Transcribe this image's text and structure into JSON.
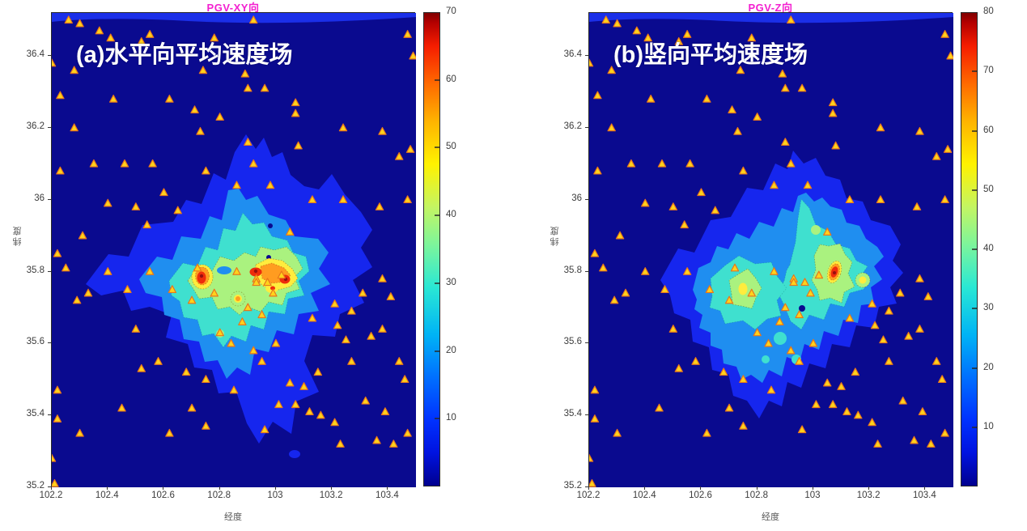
{
  "figure": {
    "background": "#ffffff",
    "xlabel": "经度",
    "ylabel": "纬度",
    "x_ticks": [
      "102.2",
      "102.4",
      "102.6",
      "102.8",
      "103",
      "103.2",
      "103.4"
    ],
    "y_ticks": [
      "36.4",
      "36.2",
      "36",
      "35.8",
      "35.6",
      "35.4",
      "35.2"
    ],
    "xlim": [
      102.2,
      103.5
    ],
    "ylim": [
      35.2,
      36.52
    ],
    "title_color": "#f320d0",
    "annotation_color": "#ffffff",
    "contour_level_colors": [
      "#0a0a8f",
      "#1626ee",
      "#1f8ef0",
      "#3fe0cf",
      "#aaf27f",
      "#ffec3d",
      "#ff9c20",
      "#ee2c0c",
      "#990f0f"
    ]
  },
  "panels": [
    {
      "id": "pgv-xy",
      "title": "PGV-XY向",
      "annotation": "(a)水平向平均速度场",
      "colorbar": {
        "min": 0,
        "max": 70,
        "ticks": [
          70,
          60,
          50,
          40,
          30,
          20,
          10
        ]
      }
    },
    {
      "id": "pgv-z",
      "title": "PGV-Z向",
      "annotation": "(b)竖向平均速度场",
      "colorbar": {
        "min": 0,
        "max": 80,
        "ticks": [
          80,
          70,
          60,
          50,
          40,
          30,
          20,
          10
        ]
      }
    }
  ],
  "stations": {
    "marker": "triangle",
    "fill": "#ffd21c",
    "stroke": "#e8761b",
    "points": [
      [
        102.26,
        36.5
      ],
      [
        102.3,
        36.49
      ],
      [
        102.37,
        36.47
      ],
      [
        102.41,
        36.45
      ],
      [
        102.52,
        36.44
      ],
      [
        102.55,
        36.46
      ],
      [
        102.78,
        36.45
      ],
      [
        102.92,
        36.5
      ],
      [
        103.47,
        36.46
      ],
      [
        103.49,
        36.4
      ],
      [
        102.2,
        36.38
      ],
      [
        102.28,
        36.36
      ],
      [
        102.74,
        36.36
      ],
      [
        102.89,
        36.35
      ],
      [
        102.9,
        36.31
      ],
      [
        102.96,
        36.31
      ],
      [
        102.23,
        36.29
      ],
      [
        102.42,
        36.28
      ],
      [
        102.62,
        36.28
      ],
      [
        103.07,
        36.27
      ],
      [
        103.07,
        36.24
      ],
      [
        102.71,
        36.25
      ],
      [
        102.8,
        36.23
      ],
      [
        103.24,
        36.2
      ],
      [
        103.38,
        36.19
      ],
      [
        102.73,
        36.19
      ],
      [
        102.28,
        36.2
      ],
      [
        102.9,
        36.16
      ],
      [
        103.48,
        36.14
      ],
      [
        103.44,
        36.12
      ],
      [
        103.08,
        36.15
      ],
      [
        102.35,
        36.1
      ],
      [
        102.46,
        36.1
      ],
      [
        102.56,
        36.1
      ],
      [
        102.75,
        36.08
      ],
      [
        102.92,
        36.1
      ],
      [
        102.23,
        36.08
      ],
      [
        102.86,
        36.04
      ],
      [
        102.98,
        36.04
      ],
      [
        102.6,
        36.02
      ],
      [
        103.13,
        36.0
      ],
      [
        103.24,
        36.0
      ],
      [
        103.47,
        36.0
      ],
      [
        103.37,
        35.98
      ],
      [
        102.4,
        35.99
      ],
      [
        102.5,
        35.98
      ],
      [
        102.65,
        35.97
      ],
      [
        102.31,
        35.9
      ],
      [
        103.05,
        35.91
      ],
      [
        102.54,
        35.93
      ],
      [
        102.25,
        35.81
      ],
      [
        102.22,
        35.85
      ],
      [
        102.33,
        35.74
      ],
      [
        102.4,
        35.8
      ],
      [
        102.47,
        35.75
      ],
      [
        102.55,
        35.8
      ],
      [
        102.63,
        35.75
      ],
      [
        102.7,
        35.72
      ],
      [
        102.78,
        35.74
      ],
      [
        102.72,
        35.81
      ],
      [
        102.86,
        35.8
      ],
      [
        102.93,
        35.78
      ],
      [
        102.97,
        35.77
      ],
      [
        103.02,
        35.79
      ],
      [
        102.99,
        35.74
      ],
      [
        102.93,
        35.77
      ],
      [
        103.38,
        35.78
      ],
      [
        103.31,
        35.74
      ],
      [
        103.41,
        35.73
      ],
      [
        103.21,
        35.71
      ],
      [
        103.27,
        35.69
      ],
      [
        103.13,
        35.67
      ],
      [
        103.22,
        35.65
      ],
      [
        103.25,
        35.61
      ],
      [
        103.34,
        35.62
      ],
      [
        103.38,
        35.64
      ],
      [
        102.9,
        35.7
      ],
      [
        102.95,
        35.68
      ],
      [
        102.88,
        35.66
      ],
      [
        102.8,
        35.63
      ],
      [
        102.84,
        35.6
      ],
      [
        102.92,
        35.58
      ],
      [
        102.5,
        35.64
      ],
      [
        102.58,
        35.55
      ],
      [
        102.68,
        35.52
      ],
      [
        102.75,
        35.5
      ],
      [
        102.85,
        35.47
      ],
      [
        103.44,
        35.55
      ],
      [
        103.46,
        35.5
      ],
      [
        103.27,
        35.55
      ],
      [
        103.32,
        35.44
      ],
      [
        103.39,
        35.41
      ],
      [
        103.47,
        35.35
      ],
      [
        103.42,
        35.32
      ],
      [
        103.36,
        35.33
      ],
      [
        103.23,
        35.32
      ],
      [
        103.16,
        35.4
      ],
      [
        103.12,
        35.41
      ],
      [
        103.21,
        35.38
      ],
      [
        102.96,
        35.36
      ],
      [
        103.15,
        35.52
      ],
      [
        103.1,
        35.48
      ],
      [
        103.07,
        35.43
      ],
      [
        103.01,
        35.43
      ],
      [
        103.05,
        35.49
      ],
      [
        102.7,
        35.42
      ],
      [
        102.62,
        35.35
      ],
      [
        102.45,
        35.42
      ],
      [
        102.3,
        35.35
      ],
      [
        102.22,
        35.47
      ],
      [
        102.95,
        35.55
      ],
      [
        103.0,
        35.6
      ],
      [
        102.29,
        35.72
      ],
      [
        102.52,
        35.53
      ],
      [
        102.22,
        35.39
      ],
      [
        102.2,
        35.28
      ],
      [
        102.75,
        35.37
      ],
      [
        102.21,
        35.21
      ]
    ]
  },
  "chart_data": [
    {
      "type": "heatmap",
      "subtype": "filled-contour-map",
      "title": "PGV-XY向",
      "annotation": "(a)水平向平均速度场",
      "xlabel": "经度",
      "ylabel": "纬度",
      "xlim": [
        102.2,
        103.5
      ],
      "ylim": [
        35.2,
        36.52
      ],
      "x_ticks": [
        102.2,
        102.4,
        102.6,
        102.8,
        103,
        103.2,
        103.4
      ],
      "y_ticks": [
        36.4,
        36.2,
        36,
        35.8,
        35.6,
        35.4,
        35.2
      ],
      "colorbar": {
        "min": 0,
        "max": 70,
        "ticks": [
          10,
          20,
          30,
          40,
          50,
          60,
          70
        ],
        "colormap": "jet",
        "position": "right"
      },
      "grid": false,
      "hotspots": [
        {
          "lon": 102.73,
          "lat": 35.77,
          "peak_value": 70
        },
        {
          "lon": 102.93,
          "lat": 35.79,
          "peak_value": 66
        },
        {
          "lon": 103.03,
          "lat": 35.77,
          "peak_value": 68
        },
        {
          "lon": 102.9,
          "lat": 35.71,
          "peak_value": 52
        }
      ],
      "background_value_range": [
        0,
        10
      ],
      "overlay": "station/epicenter yellow triangles"
    },
    {
      "type": "heatmap",
      "subtype": "filled-contour-map",
      "title": "PGV-Z向",
      "annotation": "(b)竖向平均速度场",
      "xlabel": "经度",
      "ylabel": "纬度",
      "xlim": [
        102.2,
        103.5
      ],
      "ylim": [
        35.2,
        36.52
      ],
      "x_ticks": [
        102.2,
        102.4,
        102.6,
        102.8,
        103,
        103.2,
        103.4
      ],
      "y_ticks": [
        36.4,
        36.2,
        36,
        35.8,
        35.6,
        35.4,
        35.2
      ],
      "colorbar": {
        "min": 0,
        "max": 80,
        "ticks": [
          10,
          20,
          30,
          40,
          50,
          60,
          70,
          80
        ],
        "colormap": "jet",
        "position": "right"
      },
      "grid": false,
      "hotspots": [
        {
          "lon": 103.05,
          "lat": 35.78,
          "peak_value": 76
        },
        {
          "lon": 103.11,
          "lat": 35.78,
          "peak_value": 55
        },
        {
          "lon": 102.74,
          "lat": 35.74,
          "peak_value": 50
        }
      ],
      "background_value_range": [
        0,
        10
      ],
      "overlay": "station/epicenter yellow triangles"
    }
  ]
}
